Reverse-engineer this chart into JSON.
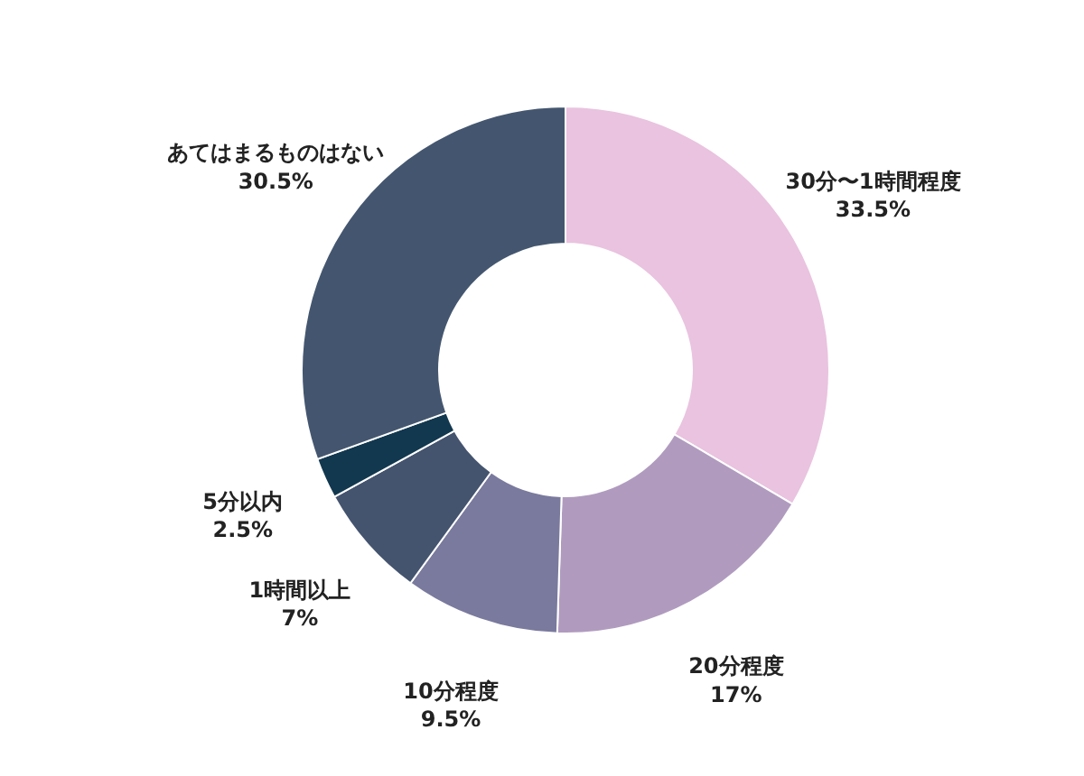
{
  "chart_data": {
    "type": "donut",
    "categories": [
      "30分〜1時間程度",
      "20分程度",
      "10分程度",
      "1時間以上",
      "5分以内",
      "あてはまるものはない"
    ],
    "values": [
      33.5,
      17,
      9.5,
      7,
      2.5,
      30.5
    ],
    "value_labels": [
      "33.5%",
      "17%",
      "9.5%",
      "7%",
      "2.5%",
      "30.5%"
    ],
    "colors": [
      "#e9c3df",
      "#b09bbf",
      "#7a7a9e",
      "#44546f",
      "#12384f",
      "#44566f"
    ]
  }
}
